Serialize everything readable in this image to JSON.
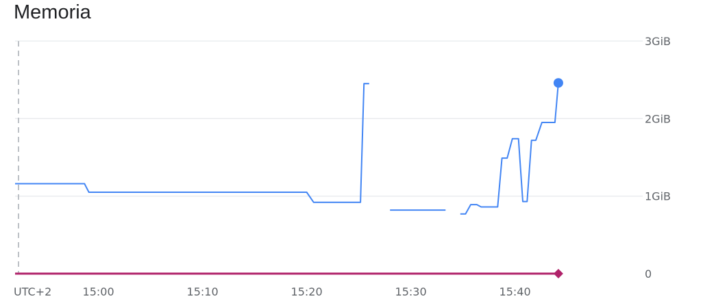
{
  "chart_data": {
    "type": "line",
    "title": "Memoria",
    "timezone_label": "UTC+2",
    "x_ticks": [
      "15:00",
      "15:10",
      "15:20",
      "15:30",
      "15:40"
    ],
    "y_ticks": [
      "0",
      "1GiB",
      "2GiB",
      "3GiB"
    ],
    "ylim": [
      0,
      3
    ],
    "y_unit": "GiB",
    "grid": true,
    "series": [
      {
        "color": "#4285f4",
        "marker": "circle",
        "segments": [
          [
            [
              "14:52:00",
              1.16
            ],
            [
              "14:58:40",
              1.16
            ],
            [
              "14:59:05",
              1.05
            ],
            [
              "15:20:00",
              1.05
            ],
            [
              "15:20:40",
              0.92
            ],
            [
              "15:25:10",
              0.92
            ],
            [
              "15:25:30",
              2.45
            ],
            [
              "15:26:00",
              2.45
            ]
          ],
          [
            [
              "15:28:00",
              0.82
            ],
            [
              "15:33:20",
              0.82
            ]
          ],
          [
            [
              "15:34:45",
              0.77
            ],
            [
              "15:35:15",
              0.77
            ],
            [
              "15:35:45",
              0.89
            ],
            [
              "15:36:20",
              0.89
            ],
            [
              "15:36:45",
              0.86
            ],
            [
              "15:38:20",
              0.86
            ],
            [
              "15:38:45",
              1.49
            ],
            [
              "15:39:15",
              1.49
            ],
            [
              "15:39:45",
              1.74
            ],
            [
              "15:40:20",
              1.74
            ],
            [
              "15:40:45",
              0.93
            ],
            [
              "15:41:10",
              0.93
            ],
            [
              "15:41:35",
              1.72
            ],
            [
              "15:42:00",
              1.72
            ],
            [
              "15:42:35",
              1.95
            ],
            [
              "15:43:50",
              1.95
            ],
            [
              "15:44:10",
              2.46
            ]
          ]
        ]
      },
      {
        "color": "#b0226a",
        "marker": "diamond",
        "segments": [
          [
            [
              "14:52:00",
              0
            ],
            [
              "15:44:10",
              0
            ]
          ]
        ]
      }
    ]
  }
}
